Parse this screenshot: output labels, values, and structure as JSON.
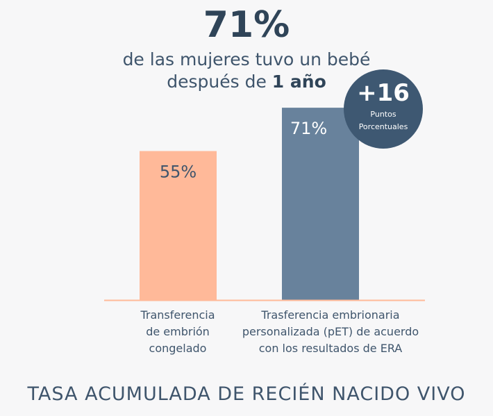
{
  "headline": "71%",
  "subtitle_line1": "de las mujeres tuvo un bebé",
  "subtitle_line2_prefix": "después de ",
  "subtitle_line2_bold": "1 año",
  "badge": {
    "value": "+16",
    "line1": "Puntos",
    "line2": "Porcentuales"
  },
  "footer_title": "TASA ACUMULADA DE RECIÉN NACIDO VIVO",
  "colors": {
    "bar1": "#ffb999",
    "bar2": "#68829c",
    "axis": "#ffb999",
    "badge": "#3e5872",
    "text": "#3f556c"
  },
  "chart_data": {
    "type": "bar",
    "categories": [
      [
        "Transferencia",
        "de embrión",
        "congelado"
      ],
      [
        "Trasferencia embrionaria",
        "personalizada (pET) de acuerdo",
        "con los resultados de ERA"
      ]
    ],
    "values": [
      55,
      71
    ],
    "value_labels": [
      "55%",
      "71%"
    ],
    "ylim": [
      0,
      100
    ]
  }
}
